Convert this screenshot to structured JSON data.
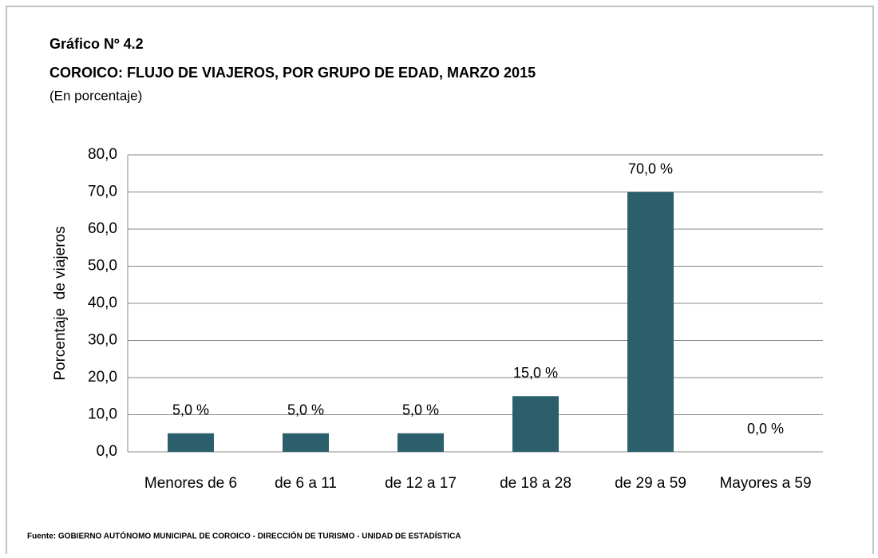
{
  "chart_data": {
    "type": "bar",
    "title": "Gráfico Nº 4.2",
    "subtitle": "COROICO: FLUJO DE VIAJEROS, POR GRUPO DE EDAD, MARZO 2015",
    "unit_note": "(En porcentaje)",
    "y_label": "Porcentaje  de viajeros",
    "source": "Fuente: GOBIERNO AUTÓNOMO MUNICIPAL DE COROICO - DIRECCIÓN DE TURISMO - UNIDAD DE ESTADÍSTICA",
    "categories": [
      "Menores de 6",
      "de 6 a 11",
      "de 12 a 17",
      "de 18 a 28",
      "de 29 a 59",
      "Mayores a 59"
    ],
    "values": [
      5,
      5,
      5,
      15,
      70,
      0
    ],
    "value_labels": [
      "5,0 %",
      "5,0 %",
      "5,0 %",
      "15,0 %",
      "70,0 %",
      "0,0 %"
    ],
    "color": "#2b5f6b",
    "ylim": [
      0,
      80
    ],
    "yticks": [
      {
        "value": 0,
        "label": "0,0"
      },
      {
        "value": 10,
        "label": "10,0"
      },
      {
        "value": 20,
        "label": "20,0"
      },
      {
        "value": 30,
        "label": "30,0"
      },
      {
        "value": 40,
        "label": "40,0"
      },
      {
        "value": 50,
        "label": "50,0"
      },
      {
        "value": 60,
        "label": "60,0"
      },
      {
        "value": 70,
        "label": "70,0"
      },
      {
        "value": 80,
        "label": "80,0"
      }
    ],
    "grid": true
  }
}
